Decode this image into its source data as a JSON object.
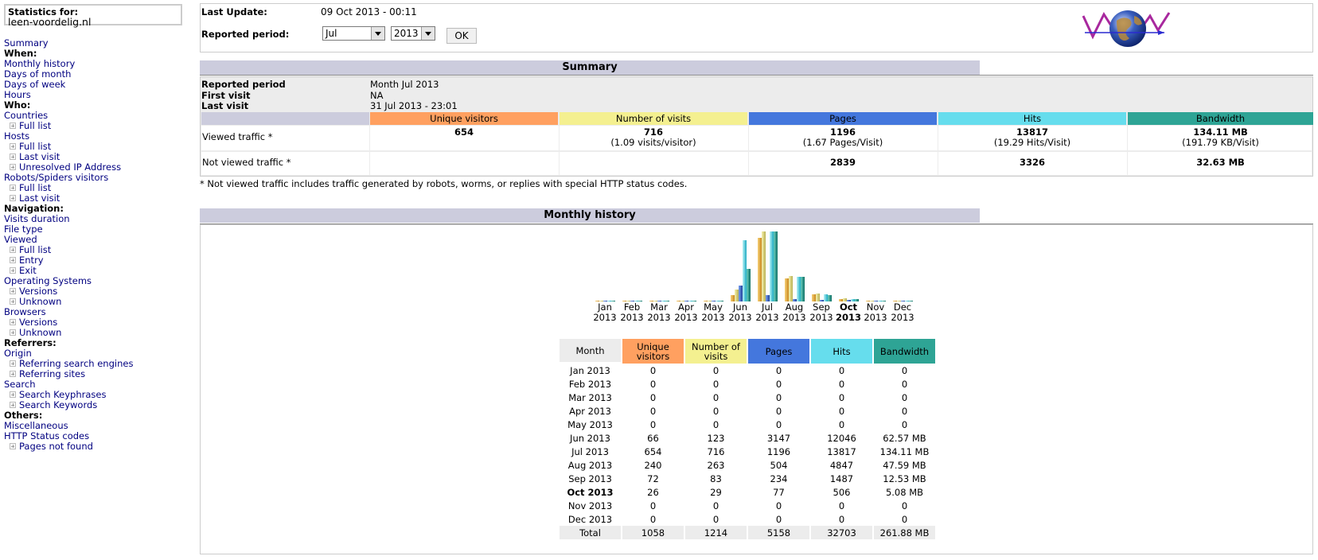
{
  "sidebar": {
    "stats_label": "Statistics for:",
    "site": "leen-voordelig.nl",
    "menu": [
      {
        "t": "link",
        "label": "Summary"
      },
      {
        "t": "head",
        "label": "When:"
      },
      {
        "t": "link",
        "label": "Monthly history"
      },
      {
        "t": "link",
        "label": "Days of month"
      },
      {
        "t": "link",
        "label": "Days of week"
      },
      {
        "t": "link",
        "label": "Hours"
      },
      {
        "t": "head",
        "label": "Who:"
      },
      {
        "t": "link",
        "label": "Countries"
      },
      {
        "t": "sub",
        "label": "Full list"
      },
      {
        "t": "link",
        "label": "Hosts"
      },
      {
        "t": "sub",
        "label": "Full list"
      },
      {
        "t": "sub",
        "label": "Last visit"
      },
      {
        "t": "sub",
        "label": "Unresolved IP Address"
      },
      {
        "t": "link",
        "label": "Robots/Spiders visitors"
      },
      {
        "t": "sub",
        "label": "Full list"
      },
      {
        "t": "sub",
        "label": "Last visit"
      },
      {
        "t": "head",
        "label": "Navigation:"
      },
      {
        "t": "link",
        "label": "Visits duration"
      },
      {
        "t": "link",
        "label": "File type"
      },
      {
        "t": "link",
        "label": "Viewed"
      },
      {
        "t": "sub",
        "label": "Full list"
      },
      {
        "t": "sub",
        "label": "Entry"
      },
      {
        "t": "sub",
        "label": "Exit"
      },
      {
        "t": "link",
        "label": "Operating Systems"
      },
      {
        "t": "sub",
        "label": "Versions"
      },
      {
        "t": "sub",
        "label": "Unknown"
      },
      {
        "t": "link",
        "label": "Browsers"
      },
      {
        "t": "sub",
        "label": "Versions"
      },
      {
        "t": "sub",
        "label": "Unknown"
      },
      {
        "t": "head",
        "label": "Referrers:"
      },
      {
        "t": "link",
        "label": "Origin"
      },
      {
        "t": "sub",
        "label": "Referring search engines"
      },
      {
        "t": "sub",
        "label": "Referring sites"
      },
      {
        "t": "link",
        "label": "Search"
      },
      {
        "t": "sub",
        "label": "Search Keyphrases"
      },
      {
        "t": "sub",
        "label": "Search Keywords"
      },
      {
        "t": "head",
        "label": "Others:"
      },
      {
        "t": "link",
        "label": "Miscellaneous"
      },
      {
        "t": "link",
        "label": "HTTP Status codes"
      },
      {
        "t": "sub",
        "label": "Pages not found"
      }
    ]
  },
  "header": {
    "last_update_label": "Last Update:",
    "last_update_value": "09 Oct 2013 - 00:11",
    "period_label": "Reported period:",
    "month_select": "Jul",
    "year_select": "2013",
    "ok_label": "OK"
  },
  "summary": {
    "title": "Summary",
    "reported_period_label": "Reported period",
    "reported_period_value": "Month Jul 2013",
    "first_visit_label": "First visit",
    "first_visit_value": "NA",
    "last_visit_label": "Last visit",
    "last_visit_value": "31 Jul 2013 - 23:01",
    "columns": [
      "Unique visitors",
      "Number of visits",
      "Pages",
      "Hits",
      "Bandwidth"
    ],
    "viewed_label": "Viewed traffic *",
    "viewed": {
      "unique": "654",
      "visits": "716",
      "visits_sub": "(1.09 visits/visitor)",
      "pages": "1196",
      "pages_sub": "(1.67 Pages/Visit)",
      "hits": "13817",
      "hits_sub": "(19.29 Hits/Visit)",
      "bandwidth": "134.11 MB",
      "bandwidth_sub": "(191.79 KB/Visit)"
    },
    "not_viewed_label": "Not viewed traffic *",
    "not_viewed": {
      "pages": "2839",
      "hits": "3326",
      "bandwidth": "32.63 MB"
    },
    "footnote": "* Not viewed traffic includes traffic generated by robots, worms, or replies with special HTTP status codes."
  },
  "monthly": {
    "title": "Monthly history",
    "headers": [
      "Month",
      "Unique visitors",
      "Number of visits",
      "Pages",
      "Hits",
      "Bandwidth"
    ],
    "rows": [
      [
        "Jan 2013",
        "0",
        "0",
        "0",
        "0",
        "0"
      ],
      [
        "Feb 2013",
        "0",
        "0",
        "0",
        "0",
        "0"
      ],
      [
        "Mar 2013",
        "0",
        "0",
        "0",
        "0",
        "0"
      ],
      [
        "Apr 2013",
        "0",
        "0",
        "0",
        "0",
        "0"
      ],
      [
        "May 2013",
        "0",
        "0",
        "0",
        "0",
        "0"
      ],
      [
        "Jun 2013",
        "66",
        "123",
        "3147",
        "12046",
        "62.57 MB"
      ],
      [
        "Jul 2013",
        "654",
        "716",
        "1196",
        "13817",
        "134.11 MB"
      ],
      [
        "Aug 2013",
        "240",
        "263",
        "504",
        "4847",
        "47.59 MB"
      ],
      [
        "Sep 2013",
        "72",
        "83",
        "234",
        "1487",
        "12.53 MB"
      ],
      [
        "Oct 2013",
        "26",
        "29",
        "77",
        "506",
        "5.08 MB"
      ],
      [
        "Nov 2013",
        "0",
        "0",
        "0",
        "0",
        "0"
      ],
      [
        "Dec 2013",
        "0",
        "0",
        "0",
        "0",
        "0"
      ]
    ],
    "current_row": 9,
    "total": [
      "Total",
      "1058",
      "1214",
      "5158",
      "32703",
      "261.88 MB"
    ]
  },
  "chart_data": {
    "type": "bar",
    "categories": [
      "Jan 2013",
      "Feb 2013",
      "Mar 2013",
      "Apr 2013",
      "May 2013",
      "Jun 2013",
      "Jul 2013",
      "Aug 2013",
      "Sep 2013",
      "Oct 2013",
      "Nov 2013",
      "Dec 2013"
    ],
    "month_labels": [
      "Jan",
      "Feb",
      "Mar",
      "Apr",
      "May",
      "Jun",
      "Jul",
      "Aug",
      "Sep",
      "Oct",
      "Nov",
      "Dec"
    ],
    "year_label": "2013",
    "highlight": 9,
    "series": [
      {
        "name": "Unique visitors",
        "values": [
          0,
          0,
          0,
          0,
          0,
          66,
          654,
          240,
          72,
          26,
          0,
          0
        ]
      },
      {
        "name": "Number of visits",
        "values": [
          0,
          0,
          0,
          0,
          0,
          123,
          716,
          263,
          83,
          29,
          0,
          0
        ]
      },
      {
        "name": "Pages",
        "values": [
          0,
          0,
          0,
          0,
          0,
          3147,
          1196,
          504,
          234,
          77,
          0,
          0
        ]
      },
      {
        "name": "Hits",
        "values": [
          0,
          0,
          0,
          0,
          0,
          12046,
          13817,
          4847,
          1487,
          506,
          0,
          0
        ]
      },
      {
        "name": "Bandwidth",
        "values": [
          0,
          0,
          0,
          0,
          0,
          62.57,
          134.11,
          47.59,
          12.53,
          5.08,
          0,
          0
        ]
      }
    ]
  },
  "colors": {
    "unique": "#ffa060",
    "visits": "#f4f090",
    "pages": "#4477dd",
    "hits": "#66dded",
    "bandwidth": "#2ea495",
    "month_header": "#ececec",
    "section": "#ccccdd"
  }
}
